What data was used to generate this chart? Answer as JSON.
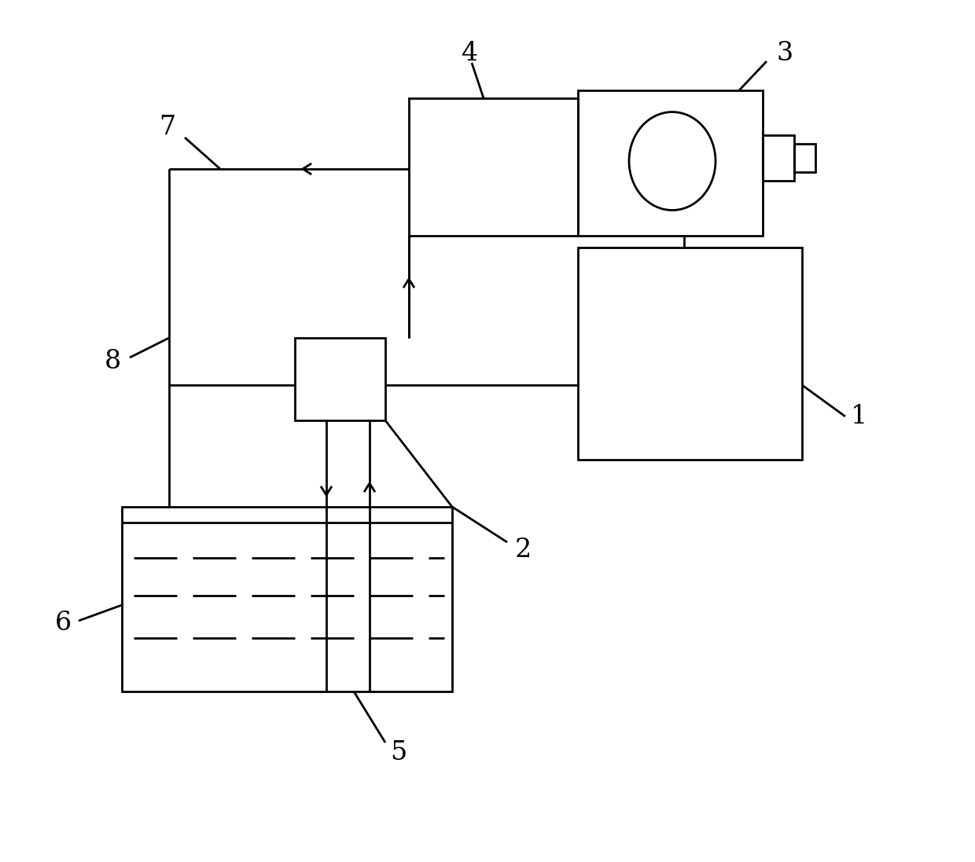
{
  "bg_color": "#ffffff",
  "lc": "#000000",
  "lw": 2.0,
  "fig_w": 12.4,
  "fig_h": 10.97
}
